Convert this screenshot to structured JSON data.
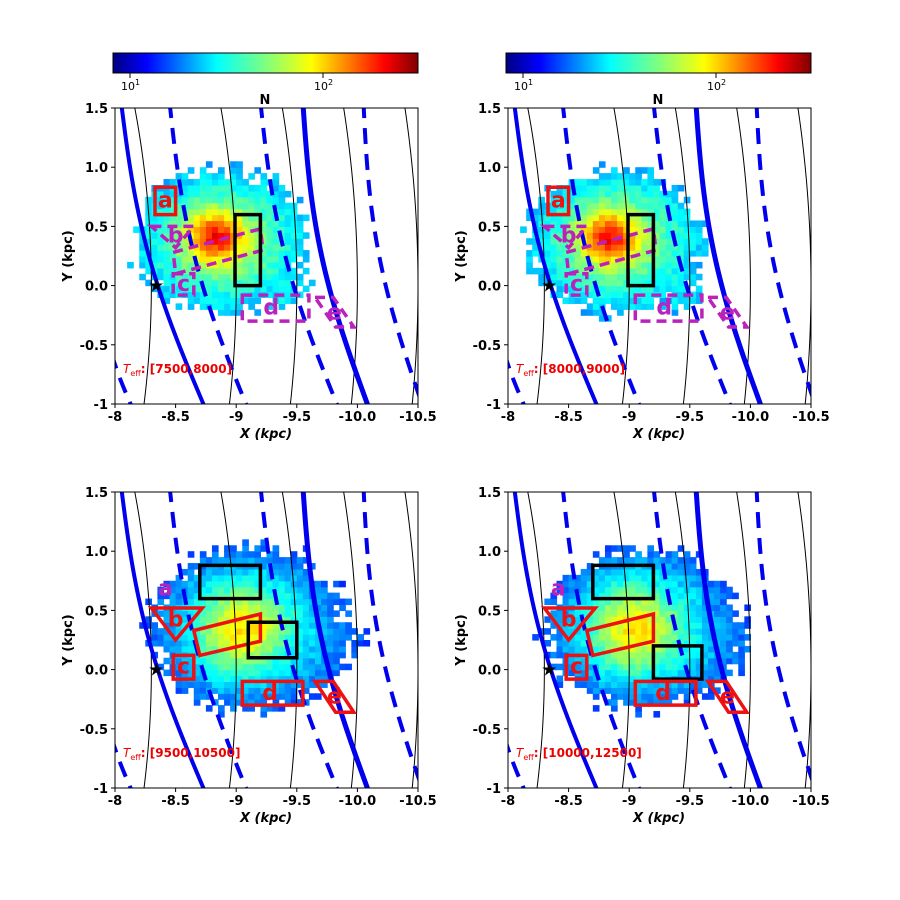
{
  "colors": {
    "blue_arm": "#0000ee",
    "black_contour": "#000000",
    "red_region": "#ee1111",
    "magenta_region": "#bb22bb",
    "teff_label": "#ee0000"
  },
  "colormap": [
    "#00007f",
    "#0000ff",
    "#007fff",
    "#00ffff",
    "#7fff7f",
    "#ffff00",
    "#ff7f00",
    "#ff0000",
    "#7f0000"
  ],
  "chart_data": [
    {
      "type": "heatmap",
      "panel": "top-left",
      "title": "N",
      "xlabel": "X (kpc)",
      "ylabel": "Y (kpc)",
      "xlim": [
        -8.0,
        -10.5
      ],
      "ylim": [
        -1.0,
        1.5
      ],
      "xticks": [
        "-8",
        "-8.5",
        "-9",
        "-9.5",
        "-10.0",
        "-10.5"
      ],
      "yticks": [
        "-1",
        "-0.5",
        "0.0",
        "0.5",
        "1.0",
        "1.5"
      ],
      "colorbar": {
        "scale": "log",
        "range": [
          8,
          300
        ],
        "ticks": [
          "10",
          "10"
        ],
        "tick_exponents": [
          "1",
          "2"
        ]
      },
      "teff_label": {
        "prefix": "T",
        "subscript": "eff",
        "suffix": ": [7500,8000]"
      },
      "sun_position": [
        -8.34,
        0.0
      ],
      "region_color": "magenta",
      "regions": [
        {
          "label": "a",
          "color": "red",
          "style": "solid"
        },
        {
          "label": "b",
          "color": "magenta",
          "style": "dashed"
        },
        {
          "label": "c",
          "color": "magenta",
          "style": "dashed"
        },
        {
          "label": "d",
          "color": "magenta",
          "style": "dashed"
        },
        {
          "label": "e",
          "color": "magenta",
          "style": "dashed"
        }
      ]
    },
    {
      "type": "heatmap",
      "panel": "top-right",
      "title": "N",
      "xlabel": "X (kpc)",
      "ylabel": "Y (kpc)",
      "xlim": [
        -8.0,
        -10.5
      ],
      "ylim": [
        -1.0,
        1.5
      ],
      "xticks": [
        "-8",
        "-8.5",
        "-9",
        "-9.5",
        "-10.0",
        "-10.5"
      ],
      "yticks": [
        "-1",
        "-0.5",
        "0.0",
        "0.5",
        "1.0",
        "1.5"
      ],
      "colorbar": {
        "scale": "log",
        "range": [
          8,
          300
        ],
        "ticks": [
          "10",
          "10"
        ],
        "tick_exponents": [
          "1",
          "2"
        ]
      },
      "teff_label": {
        "prefix": "T",
        "subscript": "eff",
        "suffix": ": [8000,9000]"
      },
      "sun_position": [
        -8.34,
        0.0
      ],
      "region_color": "magenta",
      "regions": [
        {
          "label": "a",
          "color": "red",
          "style": "solid"
        },
        {
          "label": "b",
          "color": "magenta",
          "style": "dashed"
        },
        {
          "label": "c",
          "color": "magenta",
          "style": "dashed"
        },
        {
          "label": "d",
          "color": "magenta",
          "style": "dashed"
        },
        {
          "label": "e",
          "color": "magenta",
          "style": "dashed"
        }
      ]
    },
    {
      "type": "heatmap",
      "panel": "bottom-left",
      "title": "",
      "xlabel": "X (kpc)",
      "ylabel": "Y (kpc)",
      "xlim": [
        -8.0,
        -10.5
      ],
      "ylim": [
        -1.0,
        1.5
      ],
      "xticks": [
        "-8",
        "-8.5",
        "-9",
        "-9.5",
        "-10.0",
        "-10.5"
      ],
      "yticks": [
        "-1",
        "-0.5",
        "0.0",
        "0.5",
        "1.0",
        "1.5"
      ],
      "teff_label": {
        "prefix": "T",
        "subscript": "eff",
        "suffix": ": [9500,10500]"
      },
      "sun_position": [
        -8.34,
        0.0
      ],
      "region_color": "red",
      "regions": [
        {
          "label": "a",
          "color": "magenta",
          "style": "solid"
        },
        {
          "label": "b",
          "color": "red",
          "style": "solid"
        },
        {
          "label": "c",
          "color": "red",
          "style": "solid"
        },
        {
          "label": "d",
          "color": "red",
          "style": "solid"
        },
        {
          "label": "e",
          "color": "red",
          "style": "solid"
        }
      ]
    },
    {
      "type": "heatmap",
      "panel": "bottom-right",
      "title": "",
      "xlabel": "X (kpc)",
      "ylabel": "Y (kpc)",
      "xlim": [
        -8.0,
        -10.5
      ],
      "ylim": [
        -1.0,
        1.5
      ],
      "xticks": [
        "-8",
        "-8.5",
        "-9",
        "-9.5",
        "-10.0",
        "-10.5"
      ],
      "yticks": [
        "-1",
        "-0.5",
        "0.0",
        "0.5",
        "1.0",
        "1.5"
      ],
      "teff_label": {
        "prefix": "T",
        "subscript": "eff",
        "suffix": ": [10000,12500]"
      },
      "sun_position": [
        -8.34,
        0.0
      ],
      "region_color": "red",
      "regions": [
        {
          "label": "a",
          "color": "magenta",
          "style": "solid"
        },
        {
          "label": "b",
          "color": "red",
          "style": "solid"
        },
        {
          "label": "c",
          "color": "red",
          "style": "solid"
        },
        {
          "label": "d",
          "color": "red",
          "style": "solid"
        },
        {
          "label": "e",
          "color": "red",
          "style": "solid"
        }
      ]
    }
  ]
}
